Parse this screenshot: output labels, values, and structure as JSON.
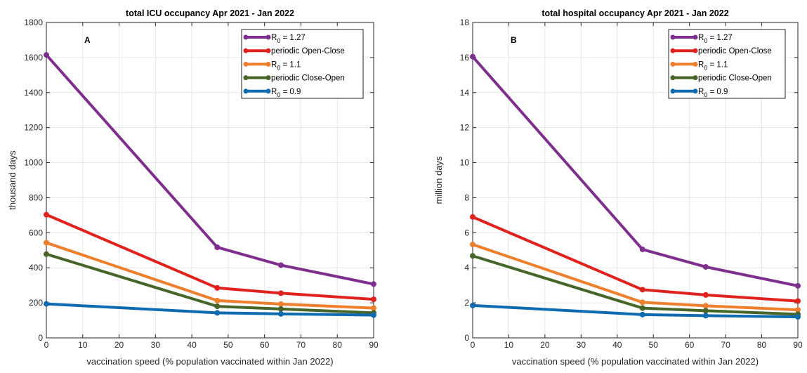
{
  "colors": {
    "purple": "#7E2F8E",
    "red": "#E0221F",
    "orange": "#EE7F2D",
    "green": "#466529",
    "blue": "#0F6BB0",
    "grid": "#e6e6e6",
    "axis": "#262626"
  },
  "chart_data": [
    {
      "type": "line",
      "title": "total ICU occupancy Apr 2021 - Jan 2022",
      "panel_label": "A",
      "xlabel": "vaccination speed (% population vaccinated within Jan 2022)",
      "ylabel": "thousand days",
      "xlim": [
        0,
        90
      ],
      "ylim": [
        0,
        1800
      ],
      "xticks": [
        "0",
        "10",
        "20",
        "30",
        "40",
        "50",
        "60",
        "70",
        "80",
        "90"
      ],
      "yticks": [
        "0",
        "200",
        "400",
        "600",
        "800",
        "1000",
        "1200",
        "1400",
        "1600",
        "1800"
      ],
      "grid": true,
      "legend_position": "top-right",
      "x": [
        0,
        47,
        64.5,
        90
      ],
      "series": [
        {
          "name": "R",
          "sub": "0",
          "suffix": " = 1.27",
          "color": "purple",
          "values": [
            1615,
            517,
            415,
            307
          ]
        },
        {
          "name": "periodic Open-Close",
          "color": "red",
          "values": [
            703,
            285,
            255,
            220
          ]
        },
        {
          "name": "R",
          "sub": "0",
          "suffix": " = 1.1",
          "color": "orange",
          "values": [
            543,
            213,
            193,
            170
          ]
        },
        {
          "name": "periodic Close-Open",
          "color": "green",
          "values": [
            478,
            180,
            165,
            143
          ]
        },
        {
          "name": "R",
          "sub": "0",
          "suffix": " = 0.9",
          "color": "blue",
          "values": [
            194,
            143,
            137,
            130
          ]
        }
      ]
    },
    {
      "type": "line",
      "title": "total hospital occupancy Apr 2021 - Jan 2022",
      "panel_label": "B",
      "xlabel": "vaccination speed (% population vaccinated within Jan 2022)",
      "ylabel": "million days",
      "xlim": [
        0,
        90
      ],
      "ylim": [
        0,
        18
      ],
      "xticks": [
        "0",
        "10",
        "20",
        "30",
        "40",
        "50",
        "60",
        "70",
        "80",
        "90"
      ],
      "yticks": [
        "0",
        "2",
        "4",
        "6",
        "8",
        "10",
        "12",
        "14",
        "16",
        "18"
      ],
      "grid": true,
      "legend_position": "top-right",
      "x": [
        0,
        47,
        64.5,
        90
      ],
      "series": [
        {
          "name": "R",
          "sub": "0",
          "suffix": " = 1.27",
          "color": "purple",
          "values": [
            16.05,
            5.05,
            4.05,
            2.97
          ]
        },
        {
          "name": "periodic Open-Close",
          "color": "red",
          "values": [
            6.9,
            2.75,
            2.45,
            2.1
          ]
        },
        {
          "name": "R",
          "sub": "0",
          "suffix": " = 1.1",
          "color": "orange",
          "values": [
            5.33,
            2.03,
            1.83,
            1.6
          ]
        },
        {
          "name": "periodic Close-Open",
          "color": "green",
          "values": [
            4.68,
            1.7,
            1.55,
            1.35
          ]
        },
        {
          "name": "R",
          "sub": "0",
          "suffix": " = 0.9",
          "color": "blue",
          "values": [
            1.85,
            1.33,
            1.27,
            1.2
          ]
        }
      ]
    }
  ]
}
